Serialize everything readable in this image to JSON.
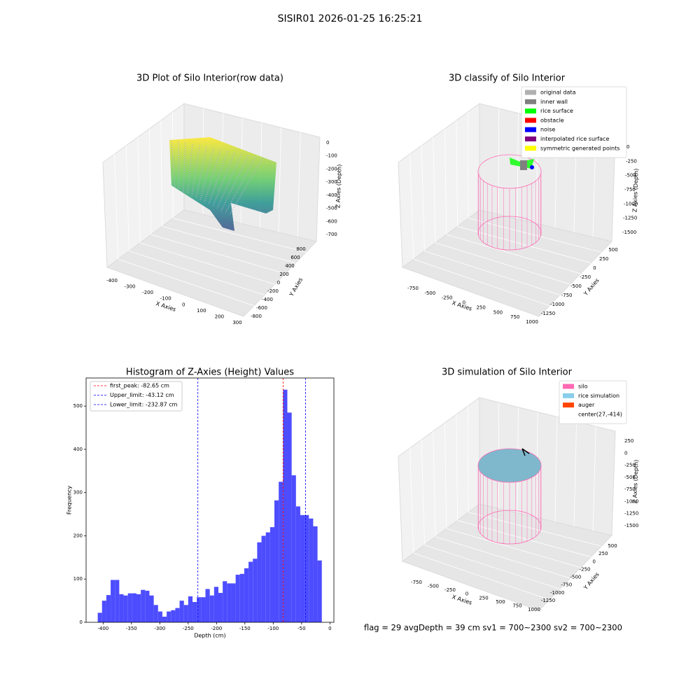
{
  "title": "SISIR01 2026-01-25 16:25:21",
  "footer": "flag = 29  avgDepth = 39 cm    sv1 = 700~2300  sv2 = 700~2300",
  "chart_data": [
    {
      "type": "scatter3d",
      "title": "3D Plot of Silo Interior(row data)",
      "xlabel": "X Axies",
      "ylabel": "Y Axies",
      "zlabel": "Z Axies (Depth)",
      "xlim": [
        -400,
        300
      ],
      "xticks": [
        -400,
        -300,
        -200,
        -100,
        0,
        100,
        200,
        300
      ],
      "ylim": [
        -800,
        800
      ],
      "yticks": [
        -800,
        -600,
        -400,
        -200,
        0,
        200,
        400,
        600,
        800
      ],
      "zlim": [
        -700,
        0
      ],
      "zticks": [
        -700,
        -600,
        -500,
        -400,
        -300,
        -200,
        -100,
        0
      ]
    },
    {
      "type": "scatter3d",
      "title": "3D classify of Silo Interior",
      "xlabel": "X Axies",
      "ylabel": "Y Axies",
      "zlabel": "Z Axies (Depth)",
      "xlim": [
        -750,
        1000
      ],
      "xticks": [
        -750,
        -500,
        -250,
        0,
        250,
        500,
        750,
        1000
      ],
      "ylim": [
        -1250,
        500
      ],
      "yticks": [
        -1250,
        -1000,
        -750,
        -500,
        -250,
        0,
        250,
        500
      ],
      "zlim": [
        -1500,
        0
      ],
      "zticks": [
        -1500,
        -1250,
        -1000,
        -750,
        -500,
        -250,
        0
      ],
      "legend": [
        {
          "name": "original data",
          "color": "#b0b0b0"
        },
        {
          "name": "inner wall",
          "color": "#808080"
        },
        {
          "name": "rice surface",
          "color": "#00ff00"
        },
        {
          "name": "obstacle",
          "color": "#ff0000"
        },
        {
          "name": "noise",
          "color": "#0000ff"
        },
        {
          "name": "interpolated rice surface",
          "color": "#800080"
        },
        {
          "name": "symmetric generated points",
          "color": "#ffff00"
        }
      ]
    },
    {
      "type": "histogram",
      "title": "Histogram of Z-Axies (Height) Values",
      "xlabel": "Depth (cm)",
      "ylabel": "Frequency",
      "color": "#4d4dff",
      "xlim": [
        -430,
        7
      ],
      "xticks": [
        -400,
        -350,
        -300,
        -250,
        -200,
        -150,
        -100,
        -50,
        0
      ],
      "ylim": [
        0,
        565
      ],
      "yticks": [
        0,
        100,
        200,
        300,
        400,
        500
      ],
      "bins": [
        -409.5,
        -401.9,
        -394.3,
        -386.7,
        -379.1,
        -371.5,
        -363.9,
        -356.3,
        -348.7,
        -341.1,
        -333.5,
        -325.9,
        -318.3,
        -310.7,
        -303.1,
        -295.5,
        -287.9,
        -280.3,
        -272.7,
        -265.1,
        -257.5,
        -249.9,
        -242.3,
        -234.7,
        -227.1,
        -219.5,
        -211.9,
        -204.3,
        -196.7,
        -189.1,
        -181.5,
        -173.9,
        -166.3,
        -158.7,
        -151.1,
        -143.5,
        -135.9,
        -128.3,
        -120.7,
        -113.1,
        -105.5,
        -97.9,
        -90.3,
        -82.7,
        -75.1,
        -67.5,
        -59.9,
        -52.3,
        -44.7,
        -37.1,
        -29.5,
        -21.9,
        -14.3
      ],
      "counts": [
        22,
        50,
        63,
        98,
        98,
        65,
        62,
        67,
        67,
        65,
        75,
        73,
        62,
        40,
        25,
        13,
        25,
        28,
        33,
        50,
        40,
        60,
        47,
        58,
        58,
        77,
        62,
        82,
        68,
        95,
        90,
        90,
        110,
        112,
        125,
        140,
        147,
        185,
        200,
        208,
        220,
        282,
        325,
        538,
        485,
        340,
        268,
        248,
        248,
        240,
        222,
        143
      ],
      "lines": [
        {
          "label": "first_peak: -82.65 cm",
          "value": -82.65,
          "color": "#ff0000"
        },
        {
          "label": "Upper_limit: -43.12 cm",
          "value": -43.12,
          "color": "#0000ff"
        },
        {
          "label": "Lower_limit: -232.87 cm",
          "value": -232.87,
          "color": "#0000ff"
        }
      ]
    },
    {
      "type": "scatter3d",
      "title": "3D simulation of Silo Interior",
      "xlabel": "X Axies",
      "ylabel": "Y Axies",
      "zlabel": "Z Axies (Depth)",
      "xlim": [
        -750,
        1000
      ],
      "xticks": [
        -750,
        -500,
        -250,
        0,
        250,
        500,
        750,
        1000
      ],
      "ylim": [
        -1250,
        500
      ],
      "yticks": [
        -1250,
        -1000,
        -750,
        -500,
        -250,
        0,
        250,
        500
      ],
      "zlim": [
        -1500,
        250
      ],
      "zticks": [
        -1500,
        -1250,
        -1000,
        -750,
        -500,
        -250,
        0,
        250
      ],
      "legend": [
        {
          "name": "silo",
          "color": "#ff69b4"
        },
        {
          "name": "rice simulation",
          "color": "#87ceeb"
        },
        {
          "name": "auger",
          "color": "#ff4500"
        },
        {
          "name": "center(27,-414)",
          "color": "none"
        }
      ]
    }
  ]
}
